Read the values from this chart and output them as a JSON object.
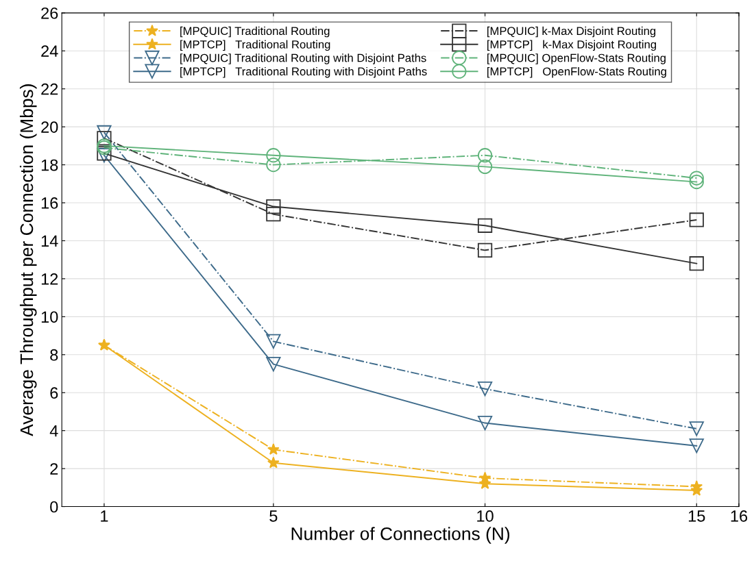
{
  "chart_data": {
    "type": "line",
    "xlabel": "Number of Connections (N)",
    "ylabel": "Average Throughput per Connection (Mbps)",
    "x": [
      1,
      5,
      10,
      15
    ],
    "xlim": [
      0,
      16
    ],
    "xticks": [
      1,
      5,
      10,
      15,
      16
    ],
    "ylim": [
      0,
      26
    ],
    "yticks": [
      0,
      2,
      4,
      6,
      8,
      10,
      12,
      14,
      16,
      18,
      20,
      22,
      24,
      26
    ],
    "grid": true,
    "legend": "top",
    "series": [
      {
        "name": "[MPQUIC] Traditional Routing",
        "color": "#edb120",
        "marker": "star",
        "line_style": "dashdot",
        "values": [
          8.5,
          3.0,
          1.5,
          1.05
        ]
      },
      {
        "name": "[MPTCP]   Traditional Routing",
        "color": "#edb120",
        "marker": "star",
        "line_style": "solid",
        "values": [
          8.5,
          2.3,
          1.2,
          0.85
        ]
      },
      {
        "name": "[MPQUIC] Traditional Routing with Disjoint Paths",
        "color": "#3d6a8a",
        "marker": "triangle",
        "line_style": "dashdot",
        "values": [
          19.7,
          8.7,
          6.2,
          4.1
        ]
      },
      {
        "name": "[MPTCP]   Traditional Routing with Disjoint Paths",
        "color": "#3d6a8a",
        "marker": "triangle",
        "line_style": "solid",
        "values": [
          18.5,
          7.5,
          4.4,
          3.2
        ]
      },
      {
        "name": "[MPQUIC] k-Max Disjoint Routing",
        "color": "#333333",
        "marker": "square",
        "line_style": "dashdot",
        "values": [
          19.4,
          15.4,
          13.5,
          15.1
        ]
      },
      {
        "name": "[MPTCP]   k-Max Disjoint Routing",
        "color": "#333333",
        "marker": "square",
        "line_style": "solid",
        "values": [
          18.6,
          15.8,
          14.8,
          12.8
        ]
      },
      {
        "name": "[MPQUIC] OpenFlow-Stats Routing",
        "color": "#5fb37a",
        "marker": "circle",
        "line_style": "dashdot",
        "values": [
          18.9,
          18.0,
          18.5,
          17.3
        ]
      },
      {
        "name": "[MPTCP]   OpenFlow-Stats Routing",
        "color": "#5fb37a",
        "marker": "circle",
        "line_style": "solid",
        "values": [
          19.0,
          18.5,
          17.9,
          17.1
        ]
      }
    ]
  }
}
